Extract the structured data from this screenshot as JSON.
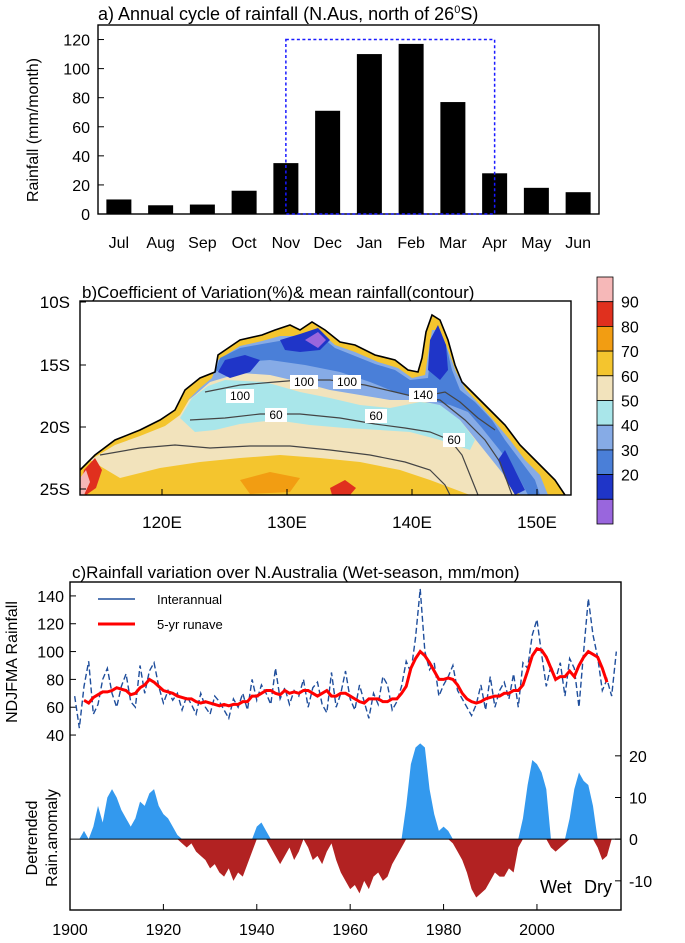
{
  "colors": {
    "bar": "#000000",
    "wet_box": "#1a1aff",
    "interannual": "#1f4e9c",
    "runave": "#ff0000",
    "wet_fill": "#3399ee",
    "dry_fill": "#b22222",
    "cv_scale": [
      "#9966dd",
      "#1f35c8",
      "#4a7fd8",
      "#86abe6",
      "#a9e6ea",
      "#f2e3bc",
      "#f4c52e",
      "#f29d12",
      "#e0301e",
      "#f6b8b8"
    ]
  },
  "panel_a": {
    "title_prefix": "a) Annual cycle of rainfall (N.Aus, north of 26",
    "title_sup": "0",
    "title_suffix": "S)",
    "ylabel": "Rainfall (mm/month)",
    "chart_data": {
      "type": "bar",
      "categories": [
        "Jul",
        "Aug",
        "Sep",
        "Oct",
        "Nov",
        "Dec",
        "Jan",
        "Feb",
        "Mar",
        "Apr",
        "May",
        "Jun"
      ],
      "values": [
        10,
        6,
        6.5,
        16,
        35,
        71,
        110,
        117,
        77,
        28,
        18,
        15
      ],
      "ylim": [
        0,
        130
      ],
      "yticks": [
        0,
        20,
        40,
        60,
        80,
        100,
        120
      ],
      "wet_season_box": [
        "Nov",
        "Apr"
      ],
      "box_top": 120
    }
  },
  "panel_b": {
    "title": "b)Coefficient of Variation(%)& mean rainfall(contour)",
    "lat_labels": [
      "10S",
      "15S",
      "20S",
      "25S"
    ],
    "lon_labels": [
      "120E",
      "130E",
      "140E",
      "150E"
    ],
    "contour_labels": [
      "100",
      "100",
      "140",
      "60",
      "60",
      "60",
      "100"
    ],
    "colorbar_labels": [
      "90",
      "80",
      "70",
      "60",
      "50",
      "40",
      "30",
      "20"
    ]
  },
  "panel_c": {
    "title": "c)Rainfall variation over N.Australia (Wet-season, mm/mon)",
    "ylabel_top": "NDJFMA Rainfall",
    "ylabel_bottom_1": "Detrended",
    "ylabel_bottom_2": "Rain.anomaly",
    "legend": {
      "interannual": "Interannual",
      "runave": "5-yr runave"
    },
    "wet_label": "Wet",
    "dry_label": "Dry",
    "chart_data": [
      {
        "type": "line",
        "ylabel": "NDJFMA Rainfall",
        "ylim": [
          35,
          150
        ],
        "yticks": [
          40,
          60,
          80,
          100,
          120,
          140
        ],
        "xlim": [
          1900,
          2018
        ],
        "series": [
          {
            "name": "Interannual",
            "x": [
              1901,
              1902,
              1903,
              1904,
              1905,
              1906,
              1907,
              1908,
              1909,
              1910,
              1911,
              1912,
              1913,
              1914,
              1915,
              1916,
              1917,
              1918,
              1919,
              1920,
              1921,
              1922,
              1923,
              1924,
              1925,
              1926,
              1927,
              1928,
              1929,
              1930,
              1931,
              1932,
              1933,
              1934,
              1935,
              1936,
              1937,
              1938,
              1939,
              1940,
              1941,
              1942,
              1943,
              1944,
              1945,
              1946,
              1947,
              1948,
              1949,
              1950,
              1951,
              1952,
              1953,
              1954,
              1955,
              1956,
              1957,
              1958,
              1959,
              1960,
              1961,
              1962,
              1963,
              1964,
              1965,
              1966,
              1967,
              1968,
              1969,
              1970,
              1971,
              1972,
              1973,
              1974,
              1975,
              1976,
              1977,
              1978,
              1979,
              1980,
              1981,
              1982,
              1983,
              1984,
              1985,
              1986,
              1987,
              1988,
              1989,
              1990,
              1991,
              1992,
              1993,
              1994,
              1995,
              1996,
              1997,
              1998,
              1999,
              2000,
              2001,
              2002,
              2003,
              2004,
              2005,
              2006,
              2007,
              2008,
              2009,
              2010,
              2011,
              2012,
              2013,
              2014,
              2015,
              2016,
              2017
            ],
            "values": [
              68,
              45,
              75,
              93,
              55,
              62,
              80,
              88,
              70,
              60,
              75,
              84,
              64,
              60,
              90,
              70,
              86,
              92,
              75,
              63,
              72,
              65,
              70,
              58,
              68,
              62,
              55,
              70,
              60,
              55,
              68,
              64,
              58,
              52,
              66,
              60,
              70,
              58,
              80,
              65,
              76,
              70,
              62,
              88,
              66,
              74,
              62,
              72,
              68,
              80,
              60,
              74,
              78,
              62,
              56,
              85,
              60,
              70,
              86,
              66,
              58,
              76,
              64,
              52,
              70,
              62,
              82,
              76,
              58,
              64,
              75,
              93,
              85,
              110,
              145,
              100,
              87,
              92,
              68,
              76,
              82,
              90,
              72,
              66,
              60,
              54,
              62,
              76,
              58,
              82,
              60,
              72,
              78,
              66,
              84,
              60,
              92,
              88,
              112,
              123,
              98,
              75,
              90,
              80,
              92,
              68,
              95,
              88,
              60,
              100,
              138,
              112,
              96,
              72,
              80,
              68,
              100
            ]
          },
          {
            "name": "5-yr runave",
            "x": [
              1903,
              1904,
              1905,
              1906,
              1907,
              1908,
              1909,
              1910,
              1911,
              1912,
              1913,
              1914,
              1915,
              1916,
              1917,
              1918,
              1919,
              1920,
              1921,
              1922,
              1923,
              1924,
              1925,
              1926,
              1927,
              1928,
              1929,
              1930,
              1931,
              1932,
              1933,
              1934,
              1935,
              1936,
              1937,
              1938,
              1939,
              1940,
              1941,
              1942,
              1943,
              1944,
              1945,
              1946,
              1947,
              1948,
              1949,
              1950,
              1951,
              1952,
              1953,
              1954,
              1955,
              1956,
              1957,
              1958,
              1959,
              1960,
              1961,
              1962,
              1963,
              1964,
              1965,
              1966,
              1967,
              1968,
              1969,
              1970,
              1971,
              1972,
              1973,
              1974,
              1975,
              1976,
              1977,
              1978,
              1979,
              1980,
              1981,
              1982,
              1983,
              1984,
              1985,
              1986,
              1987,
              1988,
              1989,
              1990,
              1991,
              1992,
              1993,
              1994,
              1995,
              1996,
              1997,
              1998,
              1999,
              2000,
              2001,
              2002,
              2003,
              2004,
              2005,
              2006,
              2007,
              2008,
              2009,
              2010,
              2011,
              2012,
              2013,
              2014,
              2015
            ],
            "values": [
              65,
              63,
              67,
              69,
              71,
              71,
              72,
              74,
              73,
              72,
              69,
              70,
              74,
              76,
              80,
              78,
              75,
              72,
              71,
              70,
              68,
              67,
              66,
              66,
              64,
              63,
              64,
              63,
              62,
              61,
              62,
              61,
              62,
              62,
              64,
              64,
              68,
              68,
              70,
              72,
              72,
              70,
              69,
              72,
              70,
              71,
              70,
              72,
              72,
              70,
              68,
              70,
              72,
              68,
              68,
              70,
              70,
              68,
              66,
              64,
              63,
              66,
              66,
              66,
              64,
              64,
              66,
              66,
              70,
              75,
              88,
              95,
              100,
              97,
              92,
              86,
              80,
              80,
              81,
              80,
              76,
              70,
              66,
              64,
              63,
              64,
              66,
              67,
              68,
              68,
              70,
              70,
              72,
              72,
              76,
              86,
              97,
              102,
              101,
              96,
              88,
              80,
              82,
              82,
              86,
              82,
              90,
              96,
              100,
              98,
              96,
              88,
              78
            ]
          }
        ]
      },
      {
        "type": "area",
        "ylabel": "Detrended Rain.anomaly",
        "ylim": [
          -17,
          25
        ],
        "yticks": [
          -10,
          0,
          10,
          20
        ],
        "xlim": [
          1900,
          2018
        ],
        "series": [
          {
            "name": "Detrended",
            "x": [
              1901,
              1902,
              1903,
              1904,
              1905,
              1906,
              1907,
              1908,
              1909,
              1910,
              1911,
              1912,
              1913,
              1914,
              1915,
              1916,
              1917,
              1918,
              1919,
              1920,
              1921,
              1922,
              1923,
              1924,
              1925,
              1926,
              1927,
              1928,
              1929,
              1930,
              1931,
              1932,
              1933,
              1934,
              1935,
              1936,
              1937,
              1938,
              1939,
              1940,
              1941,
              1942,
              1943,
              1944,
              1945,
              1946,
              1947,
              1948,
              1949,
              1950,
              1951,
              1952,
              1953,
              1954,
              1955,
              1956,
              1957,
              1958,
              1959,
              1960,
              1961,
              1962,
              1963,
              1964,
              1965,
              1966,
              1967,
              1968,
              1969,
              1970,
              1971,
              1972,
              1973,
              1974,
              1975,
              1976,
              1977,
              1978,
              1979,
              1980,
              1981,
              1982,
              1983,
              1984,
              1985,
              1986,
              1987,
              1988,
              1989,
              1990,
              1991,
              1992,
              1993,
              1994,
              1995,
              1996,
              1997,
              1998,
              1999,
              2000,
              2001,
              2002,
              2003,
              2004,
              2005,
              2006,
              2007,
              2008,
              2009,
              2010,
              2011,
              2012,
              2013,
              2014,
              2015,
              2016,
              2017
            ],
            "values": [
              0,
              0,
              2,
              0,
              3,
              8,
              4,
              10,
              12,
              10,
              7,
              5,
              3,
              5,
              9,
              8,
              11,
              12,
              8,
              6,
              5,
              3,
              1,
              -1,
              -2,
              -1,
              -3,
              -4,
              -5,
              -7,
              -6,
              -8,
              -9,
              -7,
              -10,
              -8,
              -9,
              -6,
              -3,
              3,
              4,
              2,
              -2,
              -4,
              -6,
              -4,
              -2,
              -5,
              -3,
              0,
              -2,
              -5,
              -4,
              -6,
              -3,
              -1,
              -5,
              -8,
              -10,
              -12,
              -11,
              -13,
              -10,
              -12,
              -9,
              -8,
              -10,
              -9,
              -6,
              -4,
              -2,
              8,
              18,
              22,
              23,
              22,
              12,
              6,
              2,
              3,
              2,
              -1,
              -3,
              -5,
              -8,
              -12,
              -14,
              -13,
              -12,
              -10,
              -8,
              -9,
              -9,
              -7,
              -8,
              -2,
              5,
              13,
              19,
              18,
              16,
              12,
              -2,
              -3,
              -2,
              -1,
              5,
              12,
              16,
              14,
              13,
              8,
              -2,
              -5,
              -4,
              0,
              0
            ]
          }
        ]
      }
    ],
    "xticks": [
      1900,
      1920,
      1940,
      1960,
      1980,
      2000
    ]
  }
}
